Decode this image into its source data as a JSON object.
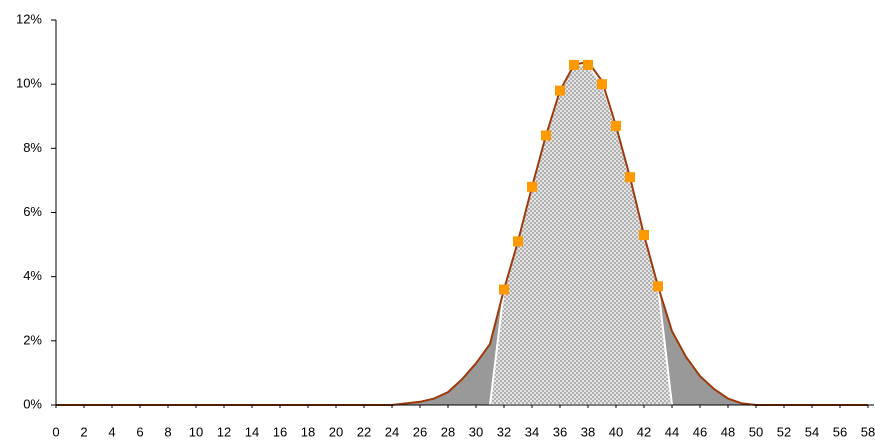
{
  "chart_data": {
    "type": "line",
    "x": [
      0,
      1,
      2,
      3,
      4,
      5,
      6,
      7,
      8,
      9,
      10,
      11,
      12,
      13,
      14,
      15,
      16,
      17,
      18,
      19,
      20,
      21,
      22,
      23,
      24,
      25,
      26,
      27,
      28,
      29,
      30,
      31,
      32,
      33,
      34,
      35,
      36,
      37,
      38,
      39,
      40,
      41,
      42,
      43,
      44,
      45,
      46,
      47,
      48,
      49,
      50,
      51,
      52,
      53,
      54,
      55,
      56,
      57,
      58
    ],
    "series": [
      {
        "color": "#9c3a0c",
        "fill": "#999999",
        "values": [
          0,
          0,
          0,
          0,
          0,
          0,
          0,
          0,
          0,
          0,
          0,
          0,
          0,
          0,
          0,
          0,
          0,
          0,
          0,
          0,
          0,
          0,
          0,
          0,
          0,
          0.05,
          0.1,
          0.2,
          0.4,
          0.8,
          1.3,
          1.9,
          3.6,
          5.1,
          6.8,
          8.4,
          9.8,
          10.6,
          10.7,
          10.1,
          8.7,
          7.1,
          5.3,
          3.7,
          2.3,
          1.5,
          0.9,
          0.5,
          0.2,
          0.05,
          0,
          0,
          0,
          0,
          0,
          0,
          0,
          0,
          0
        ]
      },
      {
        "color": "#ff9900",
        "fill": "#d0d0d0",
        "values": [
          null,
          null,
          null,
          null,
          null,
          null,
          null,
          null,
          null,
          null,
          null,
          null,
          null,
          null,
          null,
          null,
          null,
          null,
          null,
          null,
          null,
          null,
          null,
          null,
          null,
          null,
          null,
          null,
          null,
          null,
          null,
          null,
          3.6,
          5.1,
          6.8,
          8.4,
          9.8,
          10.6,
          10.6,
          10.0,
          8.7,
          7.1,
          5.3,
          3.7,
          null,
          null,
          null,
          null,
          null,
          null,
          null,
          null,
          null,
          null,
          null,
          null,
          null,
          null,
          null
        ]
      }
    ],
    "xlim": [
      0,
      58
    ],
    "xticks": [
      0,
      2,
      4,
      6,
      8,
      10,
      12,
      14,
      16,
      18,
      20,
      22,
      24,
      26,
      28,
      30,
      32,
      34,
      36,
      38,
      40,
      42,
      44,
      46,
      48,
      50,
      52,
      54,
      56,
      58
    ],
    "ylim": [
      0,
      12
    ],
    "yticks": [
      {
        "value": 0,
        "label": "0%"
      },
      {
        "value": 2,
        "label": "2%"
      },
      {
        "value": 4,
        "label": "4%"
      },
      {
        "value": 6,
        "label": "6%"
      },
      {
        "value": 8,
        "label": "8%"
      },
      {
        "value": 10,
        "label": "10%"
      },
      {
        "value": 12,
        "label": "12%"
      }
    ]
  }
}
